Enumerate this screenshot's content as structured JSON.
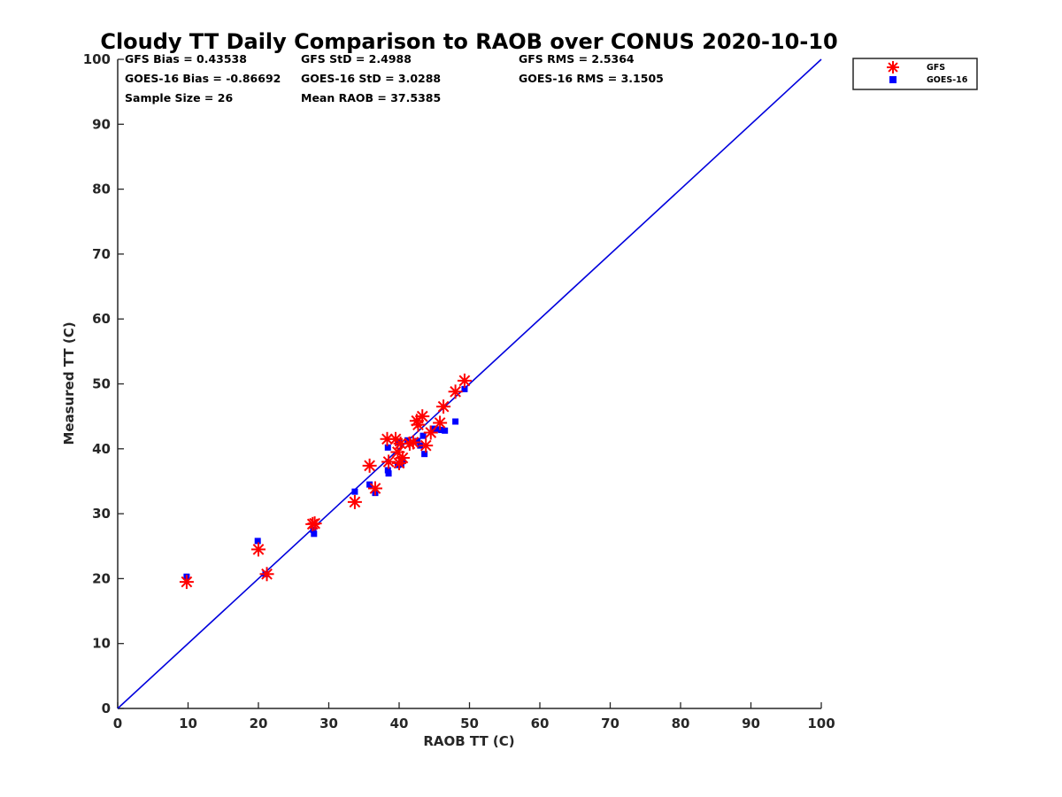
{
  "chart_data": {
    "type": "scatter",
    "title": "Cloudy TT Daily Comparison to RAOB over CONUS 2020-10-10",
    "xlabel": "RAOB TT (C)",
    "ylabel": "Measured TT (C)",
    "xlim": [
      0,
      100
    ],
    "ylim": [
      0,
      100
    ],
    "xticks": [
      "0",
      "10",
      "20",
      "30",
      "40",
      "50",
      "60",
      "70",
      "80",
      "90",
      "100"
    ],
    "yticks": [
      "0",
      "10",
      "20",
      "30",
      "40",
      "50",
      "60",
      "70",
      "80",
      "90",
      "100"
    ],
    "grid": false,
    "legend_position": "top-right (outside plot)",
    "reference_line": {
      "label": "",
      "x": [
        0,
        100
      ],
      "y": [
        0,
        100
      ],
      "color": "#0000dd"
    },
    "stats": {
      "gfs_bias": "GFS Bias = 0.43538",
      "gfs_std": "GFS StD = 2.4988",
      "gfs_rms": "GFS RMS = 2.5364",
      "goes_bias": "GOES-16 Bias = -0.86692",
      "goes_std": "GOES-16 StD = 3.0288",
      "goes_rms": "GOES-16 RMS = 3.1505",
      "sample_size": "Sample Size = 26",
      "mean_raob": "Mean RAOB = 37.5385"
    },
    "series": [
      {
        "name": "GFS",
        "marker": "asterisk",
        "color": "#ff0000",
        "points": [
          [
            9.8,
            19.5
          ],
          [
            20.0,
            24.5
          ],
          [
            21.2,
            20.7
          ],
          [
            27.7,
            28.4
          ],
          [
            28.0,
            28.5
          ],
          [
            33.7,
            31.8
          ],
          [
            35.8,
            37.4
          ],
          [
            36.6,
            33.9
          ],
          [
            38.3,
            41.5
          ],
          [
            38.5,
            38.0
          ],
          [
            39.5,
            41.5
          ],
          [
            39.8,
            39.5
          ],
          [
            40.2,
            40.8
          ],
          [
            40.5,
            38.6
          ],
          [
            41.5,
            40.8
          ],
          [
            42.5,
            44.3
          ],
          [
            42.7,
            43.7
          ],
          [
            43.3,
            45.0
          ],
          [
            43.8,
            40.5
          ],
          [
            45.8,
            44.0
          ],
          [
            46.3,
            46.5
          ],
          [
            48.0,
            48.8
          ],
          [
            49.3,
            50.5
          ],
          [
            40.0,
            37.8
          ],
          [
            42.0,
            41.0
          ],
          [
            44.5,
            42.5
          ]
        ]
      },
      {
        "name": "GOES-16",
        "marker": "square",
        "color": "#0000ff",
        "points": [
          [
            9.8,
            20.3
          ],
          [
            19.9,
            25.8
          ],
          [
            21.0,
            20.7
          ],
          [
            27.8,
            27.5
          ],
          [
            27.9,
            26.9
          ],
          [
            33.7,
            33.4
          ],
          [
            35.8,
            34.5
          ],
          [
            36.6,
            33.2
          ],
          [
            38.4,
            40.2
          ],
          [
            38.4,
            36.7
          ],
          [
            38.5,
            36.2
          ],
          [
            39.8,
            37.5
          ],
          [
            40.0,
            41.0
          ],
          [
            40.5,
            38.1
          ],
          [
            41.2,
            41.3
          ],
          [
            42.6,
            41.2
          ],
          [
            43.0,
            40.5
          ],
          [
            43.4,
            42.0
          ],
          [
            43.6,
            39.2
          ],
          [
            44.8,
            43.1
          ],
          [
            45.5,
            43.0
          ],
          [
            46.0,
            42.9
          ],
          [
            46.5,
            42.8
          ],
          [
            48.0,
            44.2
          ],
          [
            49.3,
            49.2
          ],
          [
            40.3,
            37.6
          ]
        ]
      }
    ]
  }
}
